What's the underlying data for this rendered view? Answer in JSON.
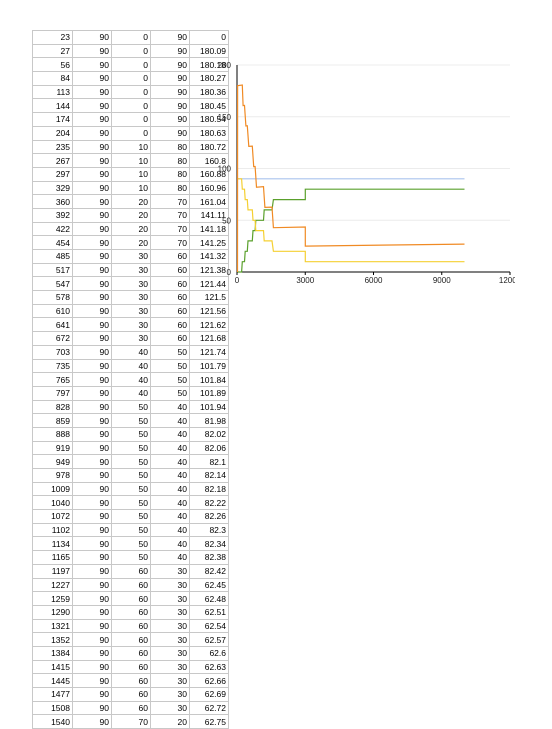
{
  "table": {
    "rows": [
      [
        "23",
        "90",
        "0",
        "90",
        "0"
      ],
      [
        "27",
        "90",
        "0",
        "90",
        "180.09"
      ],
      [
        "56",
        "90",
        "0",
        "90",
        "180.18"
      ],
      [
        "84",
        "90",
        "0",
        "90",
        "180.27"
      ],
      [
        "113",
        "90",
        "0",
        "90",
        "180.36"
      ],
      [
        "144",
        "90",
        "0",
        "90",
        "180.45"
      ],
      [
        "174",
        "90",
        "0",
        "90",
        "180.54"
      ],
      [
        "204",
        "90",
        "0",
        "90",
        "180.63"
      ],
      [
        "235",
        "90",
        "10",
        "80",
        "180.72"
      ],
      [
        "267",
        "90",
        "10",
        "80",
        "160.8"
      ],
      [
        "297",
        "90",
        "10",
        "80",
        "160.88"
      ],
      [
        "329",
        "90",
        "10",
        "80",
        "160.96"
      ],
      [
        "360",
        "90",
        "20",
        "70",
        "161.04"
      ],
      [
        "392",
        "90",
        "20",
        "70",
        "141.11"
      ],
      [
        "422",
        "90",
        "20",
        "70",
        "141.18"
      ],
      [
        "454",
        "90",
        "20",
        "70",
        "141.25"
      ],
      [
        "485",
        "90",
        "30",
        "60",
        "141.32"
      ],
      [
        "517",
        "90",
        "30",
        "60",
        "121.38"
      ],
      [
        "547",
        "90",
        "30",
        "60",
        "121.44"
      ],
      [
        "578",
        "90",
        "30",
        "60",
        "121.5"
      ],
      [
        "610",
        "90",
        "30",
        "60",
        "121.56"
      ],
      [
        "641",
        "90",
        "30",
        "60",
        "121.62"
      ],
      [
        "672",
        "90",
        "30",
        "60",
        "121.68"
      ],
      [
        "703",
        "90",
        "40",
        "50",
        "121.74"
      ],
      [
        "735",
        "90",
        "40",
        "50",
        "101.79"
      ],
      [
        "765",
        "90",
        "40",
        "50",
        "101.84"
      ],
      [
        "797",
        "90",
        "40",
        "50",
        "101.89"
      ],
      [
        "828",
        "90",
        "50",
        "40",
        "101.94"
      ],
      [
        "859",
        "90",
        "50",
        "40",
        "81.98"
      ],
      [
        "888",
        "90",
        "50",
        "40",
        "82.02"
      ],
      [
        "919",
        "90",
        "50",
        "40",
        "82.06"
      ],
      [
        "949",
        "90",
        "50",
        "40",
        "82.1"
      ],
      [
        "978",
        "90",
        "50",
        "40",
        "82.14"
      ],
      [
        "1009",
        "90",
        "50",
        "40",
        "82.18"
      ],
      [
        "1040",
        "90",
        "50",
        "40",
        "82.22"
      ],
      [
        "1072",
        "90",
        "50",
        "40",
        "82.26"
      ],
      [
        "1102",
        "90",
        "50",
        "40",
        "82.3"
      ],
      [
        "1134",
        "90",
        "50",
        "40",
        "82.34"
      ],
      [
        "1165",
        "90",
        "50",
        "40",
        "82.38"
      ],
      [
        "1197",
        "90",
        "60",
        "30",
        "82.42"
      ],
      [
        "1227",
        "90",
        "60",
        "30",
        "62.45"
      ],
      [
        "1259",
        "90",
        "60",
        "30",
        "62.48"
      ],
      [
        "1290",
        "90",
        "60",
        "30",
        "62.51"
      ],
      [
        "1321",
        "90",
        "60",
        "30",
        "62.54"
      ],
      [
        "1352",
        "90",
        "60",
        "30",
        "62.57"
      ],
      [
        "1384",
        "90",
        "60",
        "30",
        "62.6"
      ],
      [
        "1415",
        "90",
        "60",
        "30",
        "62.63"
      ],
      [
        "1445",
        "90",
        "60",
        "30",
        "62.66"
      ],
      [
        "1477",
        "90",
        "60",
        "30",
        "62.69"
      ],
      [
        "1508",
        "90",
        "60",
        "30",
        "62.72"
      ],
      [
        "1540",
        "90",
        "70",
        "20",
        "62.75"
      ]
    ]
  },
  "chart_data": {
    "type": "line",
    "title": "",
    "xlabel": "",
    "ylabel": "",
    "xlim": [
      0,
      12000
    ],
    "ylim": [
      0,
      200
    ],
    "xticks": [
      "0",
      "3000",
      "6000",
      "9000",
      "12000"
    ],
    "yticks": [
      "0",
      "50",
      "100",
      "150",
      "200"
    ],
    "grid": true,
    "legend": "none",
    "series": [
      {
        "color": "#aac4ee",
        "x": [
          23,
          10000
        ],
        "y": [
          90,
          90
        ]
      },
      {
        "color": "#5aa02c",
        "x": [
          23,
          204,
          235,
          329,
          360,
          454,
          485,
          672,
          703,
          797,
          828,
          1165,
          1197,
          1540,
          1600,
          3000,
          3000,
          10000
        ],
        "y": [
          0,
          0,
          10,
          10,
          20,
          20,
          30,
          30,
          40,
          40,
          50,
          50,
          60,
          60,
          70,
          70,
          80,
          80
        ]
      },
      {
        "color": "#f5d033",
        "x": [
          23,
          204,
          235,
          329,
          360,
          454,
          485,
          672,
          703,
          797,
          828,
          1165,
          1197,
          1540,
          1600,
          3000,
          3000,
          10000
        ],
        "y": [
          90,
          90,
          80,
          80,
          70,
          70,
          60,
          60,
          50,
          50,
          40,
          40,
          30,
          30,
          20,
          20,
          10,
          10
        ]
      },
      {
        "color": "#f08a24",
        "x": [
          23,
          27,
          235,
          267,
          329,
          392,
          454,
          517,
          672,
          735,
          797,
          859,
          1165,
          1227,
          1540,
          1600,
          3000,
          3000,
          10000
        ],
        "y": [
          0,
          180.09,
          180.72,
          160.8,
          160.96,
          141.11,
          141.25,
          121.38,
          121.68,
          101.79,
          101.89,
          81.98,
          82.38,
          62.45,
          62.75,
          42.8,
          43.5,
          25,
          27
        ]
      }
    ]
  }
}
